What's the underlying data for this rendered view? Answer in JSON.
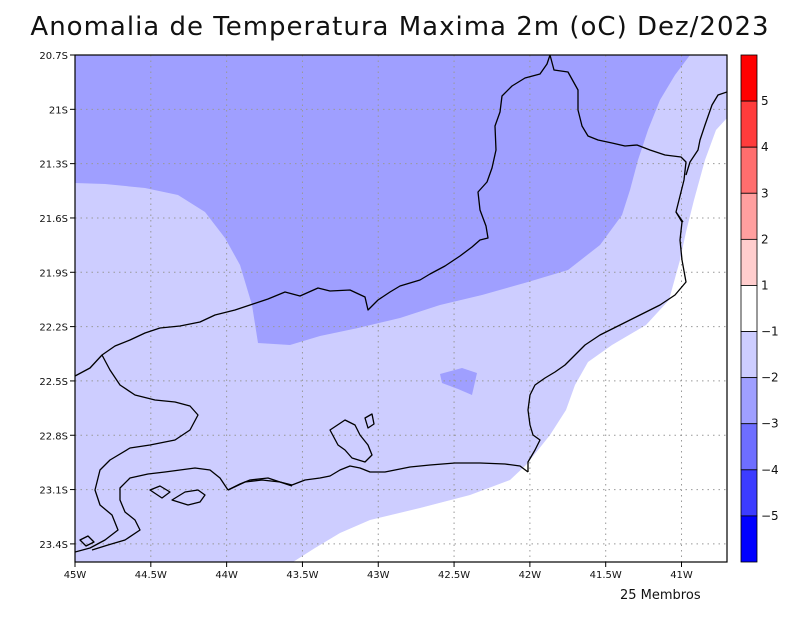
{
  "title": "Anomalia de Temperatura Maxima 2m (oC) Dez/2023",
  "footer": "25 Membros",
  "map": {
    "lon_range": [
      -45.0,
      -40.7
    ],
    "lat_range": [
      -23.5,
      -20.7
    ],
    "x_ticks": [
      {
        "lon": -45.0,
        "label": "45W"
      },
      {
        "lon": -44.5,
        "label": "44.5W"
      },
      {
        "lon": -44.0,
        "label": "44W"
      },
      {
        "lon": -43.5,
        "label": "43.5W"
      },
      {
        "lon": -43.0,
        "label": "43W"
      },
      {
        "lon": -42.5,
        "label": "42.5W"
      },
      {
        "lon": -42.0,
        "label": "42W"
      },
      {
        "lon": -41.5,
        "label": "41.5W"
      },
      {
        "lon": -41.0,
        "label": "41W"
      }
    ],
    "y_ticks": [
      {
        "lat": -20.7,
        "label": "20.7S"
      },
      {
        "lat": -21.0,
        "label": "21S"
      },
      {
        "lat": -21.3,
        "label": "21.3S"
      },
      {
        "lat": -21.6,
        "label": "21.6S"
      },
      {
        "lat": -21.9,
        "label": "21.9S"
      },
      {
        "lat": -22.2,
        "label": "22.2S"
      },
      {
        "lat": -22.5,
        "label": "22.5S"
      },
      {
        "lat": -22.8,
        "label": "22.8S"
      },
      {
        "lat": -23.1,
        "label": "23.1S"
      },
      {
        "lat": -23.4,
        "label": "23.4S"
      }
    ],
    "grid": "dotted"
  },
  "colorbar": {
    "labels": [
      "5",
      "4",
      "3",
      "2",
      "1",
      "−1",
      "−2",
      "−3",
      "−4",
      "−5"
    ],
    "colors": [
      "#ff0000",
      "#ff3c3c",
      "#ff6e6e",
      "#ff9f9f",
      "#ffcdcd",
      "#ffffff",
      "#cdcdff",
      "#9f9fff",
      "#6e6eff",
      "#3c3cff",
      "#0000ff"
    ]
  },
  "fill_colors": {
    "neutral": "#ffffff",
    "minus1": "#cdcdff",
    "minus2": "#9f9fff"
  }
}
